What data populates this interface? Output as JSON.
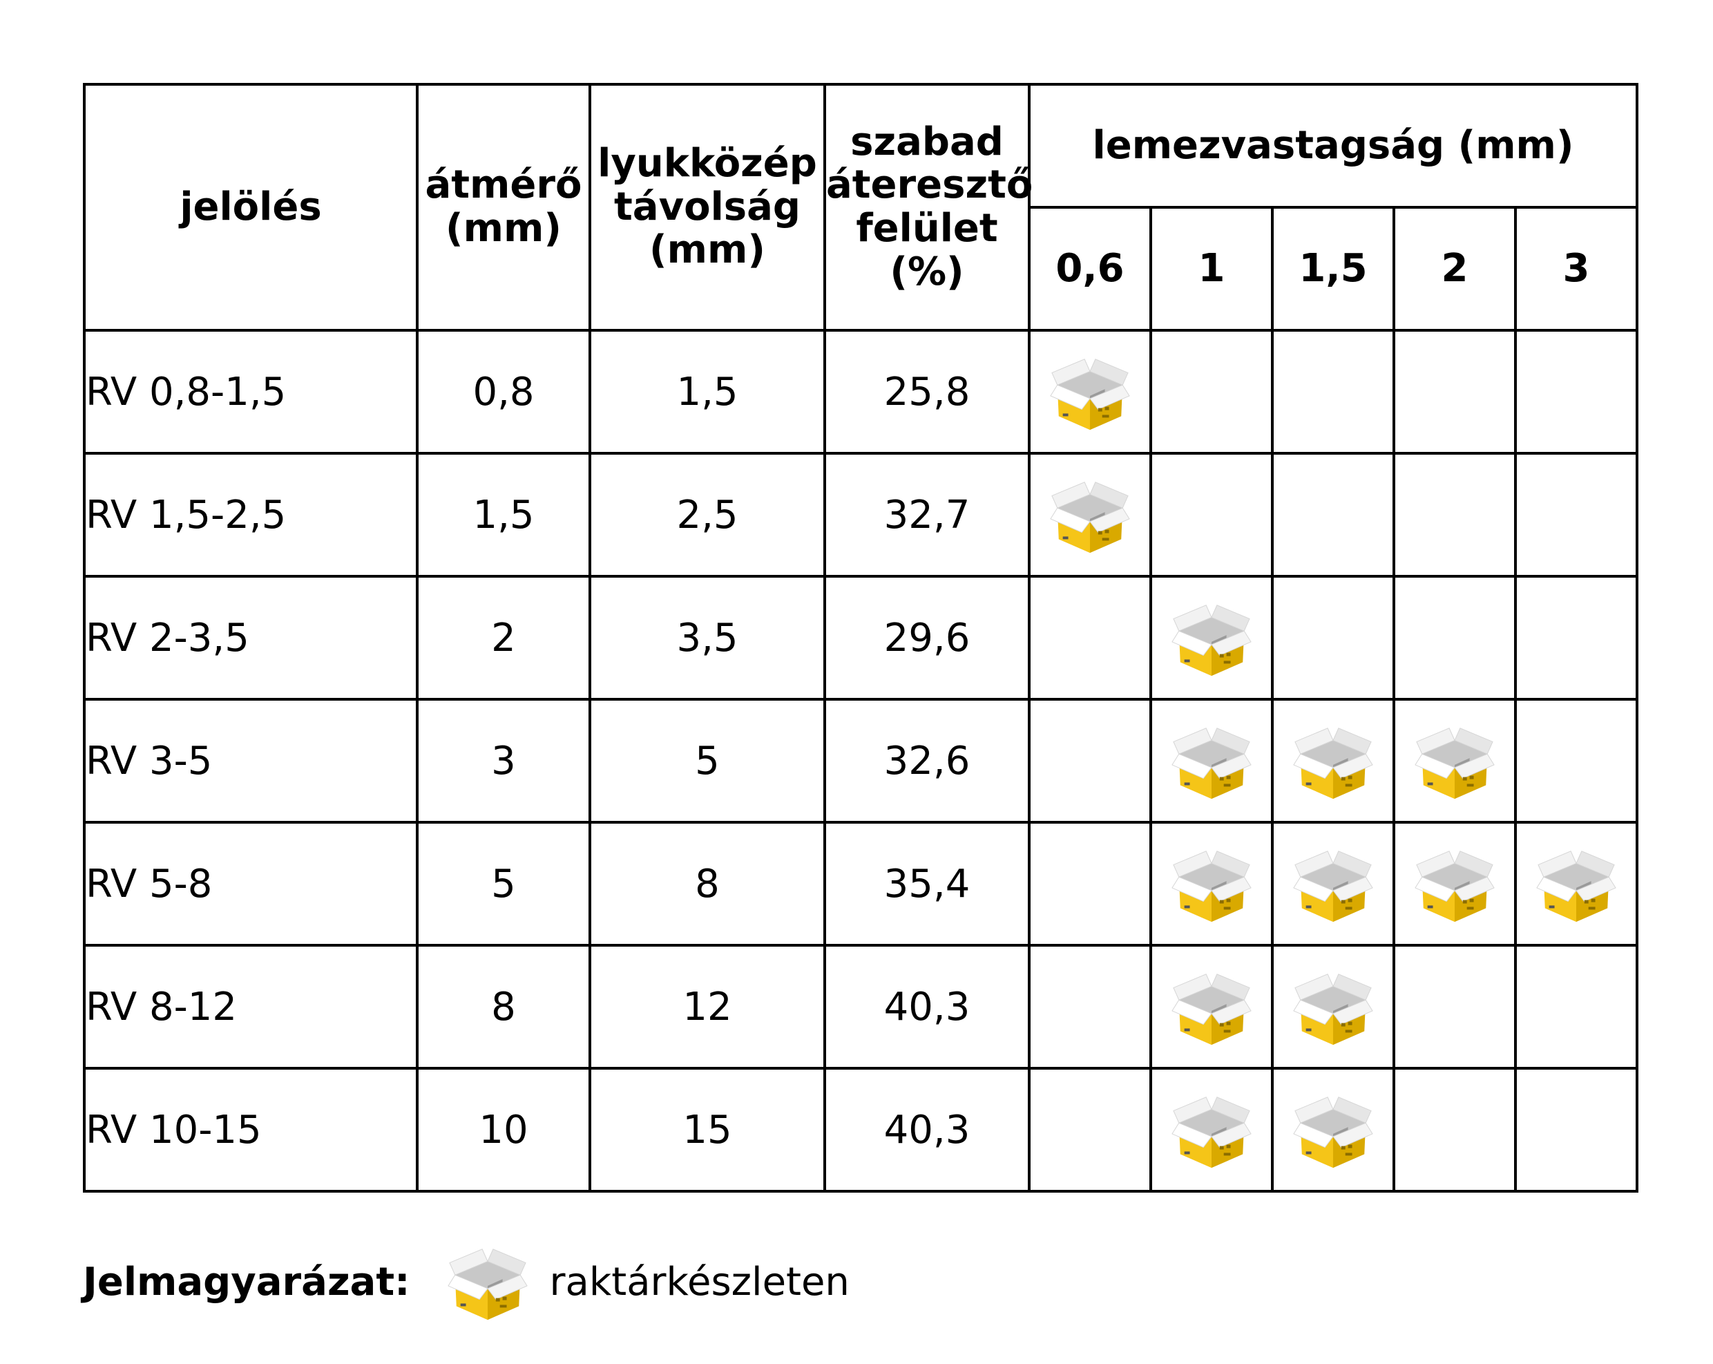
{
  "table": {
    "header": {
      "designation": "jelölés",
      "diameter": "átmérő (mm)",
      "pitch": "lyukközép távolság (mm)",
      "open_area": "szabad áteresztő felület (%)",
      "thickness_group": "lemezvastagság (mm)",
      "thicknesses": [
        "0,6",
        "1",
        "1,5",
        "2",
        "3"
      ]
    },
    "rows": [
      {
        "designation": "RV 0,8-1,5",
        "diameter": "0,8",
        "pitch": "1,5",
        "open_area": "25,8",
        "stock": [
          true,
          false,
          false,
          false,
          false
        ]
      },
      {
        "designation": "RV 1,5-2,5",
        "diameter": "1,5",
        "pitch": "2,5",
        "open_area": "32,7",
        "stock": [
          true,
          false,
          false,
          false,
          false
        ]
      },
      {
        "designation": "RV 2-3,5",
        "diameter": "2",
        "pitch": "3,5",
        "open_area": "29,6",
        "stock": [
          false,
          true,
          false,
          false,
          false
        ]
      },
      {
        "designation": "RV 3-5",
        "diameter": "3",
        "pitch": "5",
        "open_area": "32,6",
        "stock": [
          false,
          true,
          true,
          true,
          false
        ]
      },
      {
        "designation": "RV 5-8",
        "diameter": "5",
        "pitch": "8",
        "open_area": "35,4",
        "stock": [
          false,
          true,
          true,
          true,
          true
        ]
      },
      {
        "designation": "RV 8-12",
        "diameter": "8",
        "pitch": "12",
        "open_area": "40,3",
        "stock": [
          false,
          true,
          true,
          false,
          false
        ]
      },
      {
        "designation": "RV 10-15",
        "diameter": "10",
        "pitch": "15",
        "open_area": "40,3",
        "stock": [
          false,
          true,
          true,
          false,
          false
        ]
      }
    ],
    "stock_icon": "open-box-icon"
  },
  "legend": {
    "title": "Jelmagyarázat:",
    "icon": "open-box-icon",
    "text": "raktárkészleten"
  },
  "colors": {
    "box_yellow": "#f5c518",
    "box_shadow": "#d9a900",
    "box_flap": "#e9e9e9",
    "border": "#000000"
  }
}
